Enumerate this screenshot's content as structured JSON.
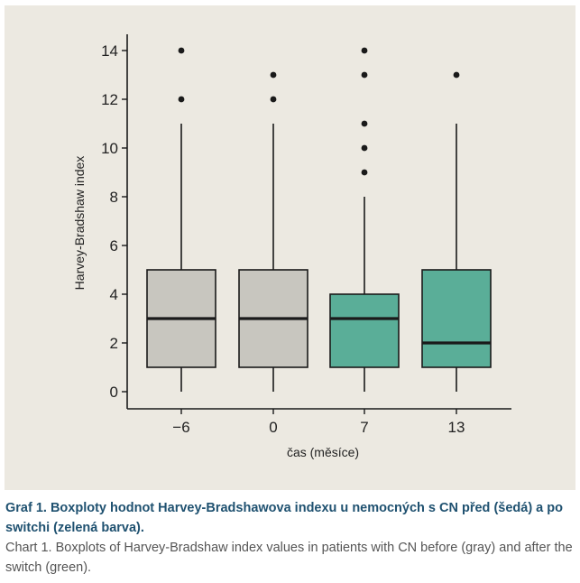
{
  "chart_data": {
    "type": "boxplot",
    "xlabel": "čas (měsíce)",
    "ylabel": "Harvey-Bradshaw index",
    "ylim": [
      0,
      14
    ],
    "yticks": [
      0,
      2,
      4,
      6,
      8,
      10,
      12,
      14
    ],
    "categories": [
      "−6",
      "0",
      "7",
      "13"
    ],
    "colors": {
      "before": "#c8c6bf",
      "after": "#5aae98",
      "background": "#ece9e1",
      "outline": "#1a1a1a"
    },
    "boxes": [
      {
        "category": "−6",
        "group": "before",
        "whisker_low": 0,
        "q1": 1,
        "median": 3,
        "q3": 5,
        "whisker_high": 11,
        "outliers": [
          12,
          14
        ]
      },
      {
        "category": "0",
        "group": "before",
        "whisker_low": 0,
        "q1": 1,
        "median": 3,
        "q3": 5,
        "whisker_high": 11,
        "outliers": [
          12,
          13
        ]
      },
      {
        "category": "7",
        "group": "after",
        "whisker_low": 0,
        "q1": 1,
        "median": 3,
        "q3": 4,
        "whisker_high": 8,
        "outliers": [
          9,
          10,
          11,
          13,
          14
        ]
      },
      {
        "category": "13",
        "group": "after",
        "whisker_low": 0,
        "q1": 1,
        "median": 2,
        "q3": 5,
        "whisker_high": 11,
        "outliers": [
          13
        ]
      }
    ]
  },
  "caption": {
    "czech": "Graf 1. Boxploty hodnot Harvey-Bradshawova indexu u nemocných s CN před (šedá) a po switchi (zelená barva).",
    "english": "Chart 1. Boxplots of Harvey-Bradshaw index values in patients with CN before (gray) and after the switch (green)."
  }
}
